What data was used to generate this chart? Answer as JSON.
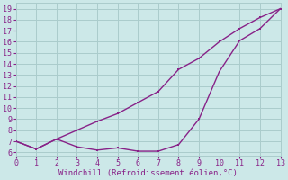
{
  "line_temp_x": [
    0,
    1,
    2,
    3,
    4,
    5,
    6,
    7,
    8,
    9,
    10,
    11,
    12,
    13
  ],
  "line_temp_y": [
    7.0,
    6.3,
    7.2,
    8.0,
    8.8,
    9.5,
    10.5,
    11.5,
    13.5,
    14.5,
    16.0,
    17.2,
    18.2,
    19.0
  ],
  "line_wc_x": [
    0,
    1,
    2,
    3,
    4,
    5,
    6,
    7,
    8,
    9,
    10,
    11,
    12,
    13
  ],
  "line_wc_y": [
    7.0,
    6.3,
    7.2,
    6.5,
    6.2,
    6.4,
    6.1,
    6.1,
    6.7,
    9.0,
    13.3,
    16.1,
    17.2,
    19.0
  ],
  "line_color": "#882288",
  "bg_color": "#cce8e8",
  "grid_color": "#aacccc",
  "xlabel": "Windchill (Refroidissement éolien,°C)",
  "xlabel_color": "#882288",
  "yticks": [
    6,
    7,
    8,
    9,
    10,
    11,
    12,
    13,
    14,
    15,
    16,
    17,
    18,
    19
  ],
  "xticks": [
    0,
    1,
    2,
    3,
    4,
    5,
    6,
    7,
    8,
    9,
    10,
    11,
    12,
    13
  ],
  "xlim": [
    0,
    13
  ],
  "ylim": [
    5.7,
    19.5
  ]
}
